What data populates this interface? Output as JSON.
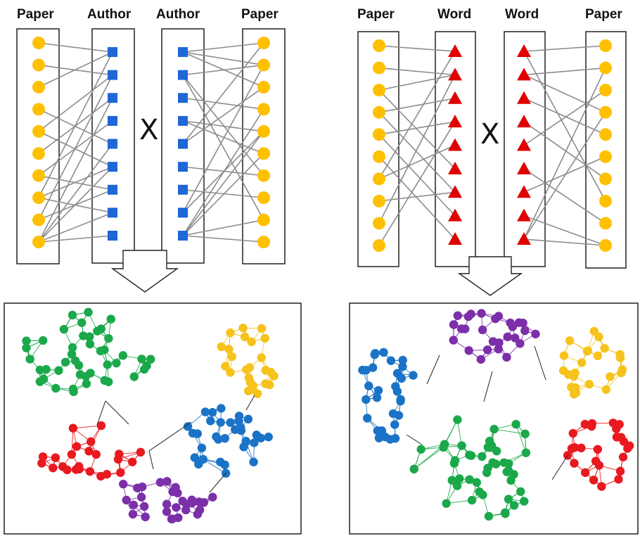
{
  "left_projection": {
    "titles": {
      "paper_left": "Paper",
      "author_left": "Author",
      "author_right": "Author",
      "paper_right": "Paper"
    },
    "operator": "X",
    "paper_count": 10,
    "author_count": 9,
    "edges_left": [
      [
        0,
        0
      ],
      [
        1,
        1
      ],
      [
        2,
        0
      ],
      [
        3,
        4
      ],
      [
        4,
        1
      ],
      [
        4,
        5
      ],
      [
        5,
        2
      ],
      [
        6,
        3
      ],
      [
        6,
        6
      ],
      [
        7,
        0
      ],
      [
        7,
        5
      ],
      [
        7,
        7
      ],
      [
        8,
        6
      ],
      [
        8,
        1
      ],
      [
        9,
        2
      ],
      [
        9,
        4
      ],
      [
        9,
        5
      ],
      [
        9,
        7
      ],
      [
        9,
        8
      ]
    ],
    "edges_right": [
      [
        0,
        0
      ],
      [
        0,
        2
      ],
      [
        0,
        1
      ],
      [
        1,
        1
      ],
      [
        1,
        6
      ],
      [
        1,
        8
      ],
      [
        2,
        3
      ],
      [
        3,
        4
      ],
      [
        3,
        5
      ],
      [
        4,
        0
      ],
      [
        4,
        2
      ],
      [
        5,
        6
      ],
      [
        6,
        7
      ],
      [
        7,
        1
      ],
      [
        7,
        4
      ],
      [
        8,
        5
      ],
      [
        8,
        8
      ],
      [
        8,
        3
      ],
      [
        8,
        9
      ],
      [
        8,
        4
      ]
    ]
  },
  "right_projection": {
    "titles": {
      "paper_left": "Paper",
      "word_left": "Word",
      "word_right": "Word",
      "paper_right": "Paper"
    },
    "operator": "X",
    "paper_count": 10,
    "word_count": 9,
    "edges_left": [
      [
        0,
        0
      ],
      [
        1,
        1
      ],
      [
        2,
        1
      ],
      [
        2,
        5
      ],
      [
        3,
        6
      ],
      [
        3,
        2
      ],
      [
        4,
        7
      ],
      [
        4,
        3
      ],
      [
        5,
        8
      ],
      [
        6,
        0
      ],
      [
        6,
        4
      ],
      [
        7,
        6
      ],
      [
        8,
        1
      ],
      [
        9,
        3
      ]
    ],
    "edges_right": [
      [
        0,
        0
      ],
      [
        0,
        7
      ],
      [
        1,
        1
      ],
      [
        1,
        3
      ],
      [
        2,
        4
      ],
      [
        3,
        6
      ],
      [
        4,
        2
      ],
      [
        5,
        8
      ],
      [
        6,
        5
      ],
      [
        7,
        9
      ],
      [
        8,
        1
      ],
      [
        8,
        9
      ],
      [
        8,
        3
      ]
    ]
  },
  "clusters_left": {
    "colors": {
      "green": "#1aa84b",
      "yellow": "#f6c21c",
      "red": "#e8191f",
      "blue": "#1a73c6",
      "purple": "#7b2fa8"
    }
  },
  "clusters_right": {
    "colors": {
      "blue": "#1a73c6",
      "purple": "#7b2fa8",
      "yellow": "#f6c21c",
      "green": "#1aa84b",
      "red": "#e8191f"
    }
  },
  "colors": {
    "paper_node": "#ffc000",
    "author_node": "#1f66d6",
    "word_node": "#e00000",
    "edge": "#8c8c8c"
  }
}
